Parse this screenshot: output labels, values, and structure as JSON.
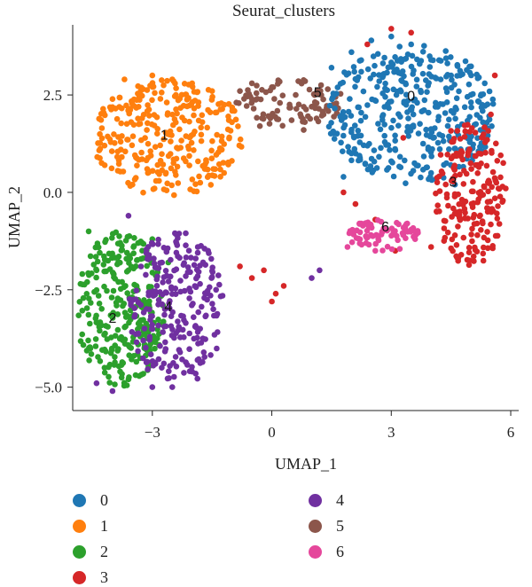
{
  "chart_data": {
    "type": "scatter",
    "title": "Seurat_clusters",
    "xlabel": "UMAP_1",
    "ylabel": "UMAP_2",
    "xlim": [
      -5.0,
      6.2
    ],
    "ylim": [
      -5.6,
      4.3
    ],
    "xticks": [
      -3,
      0,
      3,
      6
    ],
    "xtick_labels": [
      "−3",
      "0",
      "3",
      "6"
    ],
    "yticks": [
      2.5,
      0.0,
      -2.5,
      -5.0
    ],
    "ytick_labels": [
      "2.5",
      "0.0",
      "−2.5",
      "−5.0"
    ],
    "legend_position": "bottom",
    "series": [
      {
        "name": "0",
        "color": "#1f77b4",
        "cloud": {
          "cx": 3.5,
          "cy": 2.0,
          "rx": 2.1,
          "ry": 1.8,
          "n": 380
        },
        "x": [
          1.5,
          2.0,
          2.5,
          3.0,
          3.5,
          4.0,
          4.5,
          5.0,
          5.3,
          2.0,
          3.0,
          4.0,
          1.8,
          4.6
        ],
        "y": [
          3.2,
          3.6,
          3.9,
          4.0,
          3.8,
          3.4,
          3.0,
          2.5,
          1.8,
          1.0,
          0.8,
          0.5,
          0.4,
          0.2
        ]
      },
      {
        "name": "1",
        "color": "#ff7f0e",
        "cloud": {
          "cx": -2.6,
          "cy": 1.4,
          "rx": 1.9,
          "ry": 1.5,
          "n": 300
        },
        "x": [
          -3.7,
          -3.0,
          -2.5,
          -2.0,
          -1.5,
          -1.0,
          -4.2,
          -3.5,
          -1.2
        ],
        "y": [
          2.9,
          3.0,
          2.9,
          2.8,
          2.6,
          1.8,
          1.2,
          0.2,
          0.5
        ]
      },
      {
        "name": "2",
        "color": "#2ca02c",
        "cloud": {
          "cx": -3.8,
          "cy": -3.0,
          "rx": 1.1,
          "ry": 2.0,
          "n": 280
        },
        "x": [
          -4.6,
          -4.4,
          -4.2,
          -3.6,
          -3.2,
          -2.6,
          -3.0
        ],
        "y": [
          -1.0,
          -2.0,
          -4.5,
          -4.8,
          -4.0,
          -1.8,
          -1.2
        ]
      },
      {
        "name": "3",
        "color": "#d62728",
        "cloud": {
          "cx": 5.0,
          "cy": 0.0,
          "rx": 0.9,
          "ry": 1.9,
          "n": 200
        },
        "x": [
          1.8,
          2.1,
          2.6,
          3.1,
          4.0,
          4.6,
          5.2,
          5.5,
          5.6,
          3.5,
          3.0,
          -0.5,
          -0.2,
          0.1,
          0.3,
          -0.8,
          0.0,
          2.4,
          3.3
        ],
        "y": [
          0.0,
          -0.3,
          -0.7,
          -1.5,
          -1.4,
          -1.1,
          1.0,
          2.0,
          3.0,
          4.1,
          4.2,
          -2.2,
          -2.0,
          -2.6,
          -2.4,
          -1.9,
          -2.8,
          3.8,
          1.4
        ]
      },
      {
        "name": "4",
        "color": "#7030a0",
        "cloud": {
          "cx": -2.4,
          "cy": -3.0,
          "rx": 1.2,
          "ry": 2.0,
          "n": 240
        },
        "x": [
          -1.6,
          -1.4,
          -1.8,
          -2.0,
          -2.5,
          -3.0,
          -4.4,
          -4.0,
          -3.6,
          1.2,
          1.0
        ],
        "y": [
          -1.5,
          -2.5,
          -3.5,
          -4.6,
          -5.0,
          -5.0,
          -4.9,
          -5.1,
          -0.6,
          -2.0,
          -2.2
        ]
      },
      {
        "name": "5",
        "color": "#8c564b",
        "cloud": {
          "cx": 0.5,
          "cy": 2.3,
          "rx": 1.4,
          "ry": 0.6,
          "n": 90
        },
        "x": [
          -0.8,
          -0.5,
          0.0,
          0.6,
          1.0,
          1.3,
          -0.3,
          0.8
        ],
        "y": [
          2.6,
          2.8,
          2.7,
          2.5,
          2.2,
          2.0,
          1.7,
          1.6
        ]
      },
      {
        "name": "6",
        "color": "#e5479b",
        "cloud": {
          "cx": 2.8,
          "cy": -1.1,
          "rx": 0.9,
          "ry": 0.4,
          "n": 75
        },
        "x": [
          1.9,
          2.2,
          3.4,
          3.6,
          2.6
        ],
        "y": [
          -1.4,
          -0.8,
          -0.8,
          -1.2,
          -1.5
        ]
      }
    ],
    "annotations": [
      {
        "text": "0",
        "x": 3.5,
        "y": 2.35
      },
      {
        "text": "1",
        "x": -2.7,
        "y": 1.35
      },
      {
        "text": "2",
        "x": -4.0,
        "y": -3.35
      },
      {
        "text": "3",
        "x": 4.55,
        "y": 0.15
      },
      {
        "text": "4",
        "x": -2.6,
        "y": -3.05
      },
      {
        "text": "5",
        "x": 1.15,
        "y": 2.45
      },
      {
        "text": "6",
        "x": 2.85,
        "y": -1.0
      }
    ]
  }
}
